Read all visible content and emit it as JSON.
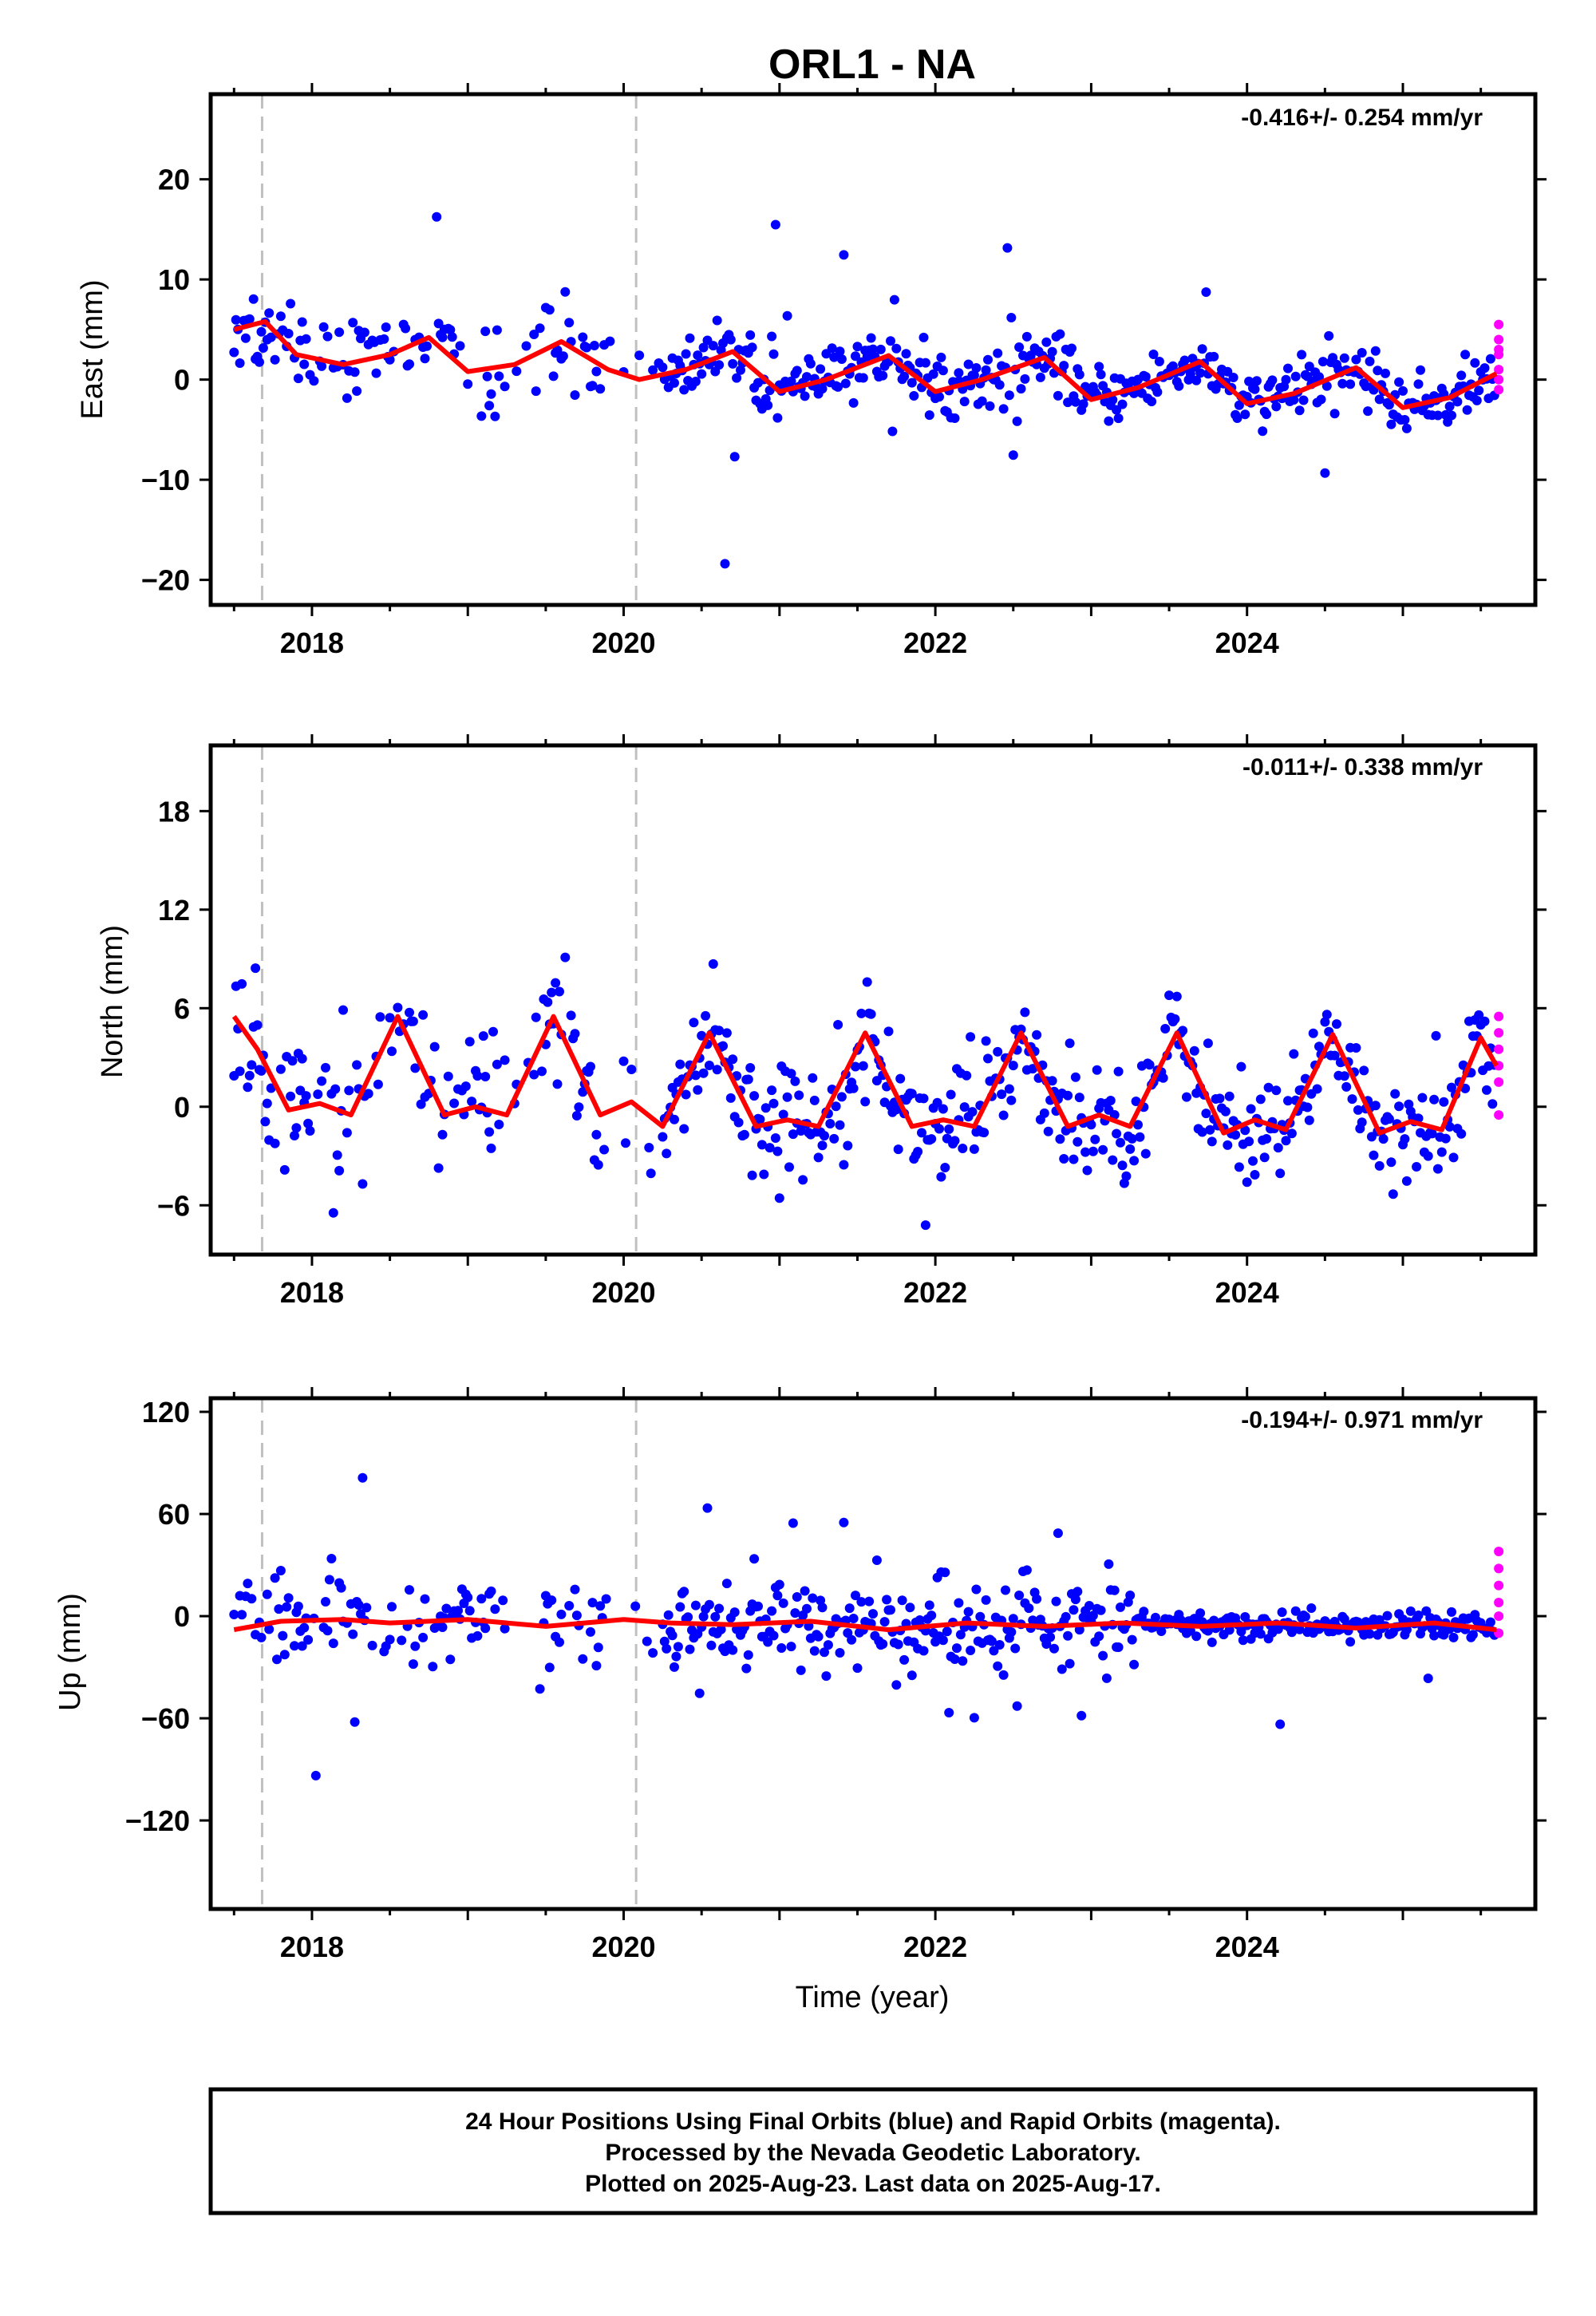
{
  "chart_data": {
    "type": "scatter",
    "title": "ORL1 - NA",
    "xlabel": "Time (year)",
    "xlim": [
      2017.35,
      2025.85
    ],
    "x_ticks": [
      "2018",
      "2020",
      "2022",
      "2024"
    ],
    "event_lines_x": [
      2017.68,
      2020.08
    ],
    "last_final_x": 2025.6,
    "panels": [
      {
        "ylabel": "East (mm)",
        "rate": "-0.416+/- 0.254 mm/yr",
        "ylim": [
          -22.5,
          28.5
        ],
        "y_ticks": [
          "20",
          "10",
          "0",
          "−10",
          "−20"
        ],
        "y_tick_values": [
          20,
          10,
          0,
          -10,
          -20
        ],
        "model": [
          [
            2017.5,
            5
          ],
          [
            2017.7,
            5.8
          ],
          [
            2017.9,
            2.5
          ],
          [
            2018.2,
            1.5
          ],
          [
            2018.5,
            2.5
          ],
          [
            2018.75,
            4.2
          ],
          [
            2019.0,
            0.8
          ],
          [
            2019.3,
            1.5
          ],
          [
            2019.6,
            3.8
          ],
          [
            2019.9,
            1
          ],
          [
            2020.1,
            0
          ],
          [
            2020.4,
            1
          ],
          [
            2020.7,
            2.8
          ],
          [
            2021.0,
            -1.2
          ],
          [
            2021.3,
            0
          ],
          [
            2021.7,
            2.4
          ],
          [
            2022.0,
            -1.2
          ],
          [
            2022.3,
            0
          ],
          [
            2022.7,
            2.2
          ],
          [
            2023.0,
            -2
          ],
          [
            2023.3,
            -0.8
          ],
          [
            2023.7,
            1.8
          ],
          [
            2024.0,
            -2.4
          ],
          [
            2024.3,
            -1.4
          ],
          [
            2024.7,
            1.2
          ],
          [
            2025.0,
            -2.8
          ],
          [
            2025.3,
            -1.8
          ],
          [
            2025.6,
            0.6
          ]
        ],
        "rapid": [
          5.5,
          4,
          2.5,
          1,
          0,
          -1,
          3
        ]
      },
      {
        "ylabel": "North (mm)",
        "rate": "-0.011+/- 0.338 mm/yr",
        "ylim": [
          -9,
          22
        ],
        "y_ticks": [
          "18",
          "12",
          "6",
          "0",
          "−6"
        ],
        "y_tick_values": [
          18,
          12,
          6,
          0,
          -6
        ],
        "model": [
          [
            2017.5,
            5.5
          ],
          [
            2017.65,
            3.5
          ],
          [
            2017.85,
            -0.2
          ],
          [
            2018.05,
            0.2
          ],
          [
            2018.25,
            -0.5
          ],
          [
            2018.55,
            5.5
          ],
          [
            2018.85,
            -0.5
          ],
          [
            2019.05,
            0
          ],
          [
            2019.25,
            -0.5
          ],
          [
            2019.55,
            5.5
          ],
          [
            2019.85,
            -0.5
          ],
          [
            2020.05,
            0.3
          ],
          [
            2020.25,
            -1.2
          ],
          [
            2020.55,
            4.5
          ],
          [
            2020.85,
            -1.2
          ],
          [
            2021.05,
            -0.8
          ],
          [
            2021.25,
            -1.2
          ],
          [
            2021.55,
            4.5
          ],
          [
            2021.85,
            -1.2
          ],
          [
            2022.05,
            -0.8
          ],
          [
            2022.25,
            -1.2
          ],
          [
            2022.55,
            4.5
          ],
          [
            2022.85,
            -1.2
          ],
          [
            2023.05,
            -0.5
          ],
          [
            2023.25,
            -1.2
          ],
          [
            2023.55,
            4.5
          ],
          [
            2023.85,
            -1.6
          ],
          [
            2024.05,
            -0.8
          ],
          [
            2024.25,
            -1.4
          ],
          [
            2024.55,
            4.4
          ],
          [
            2024.85,
            -1.6
          ],
          [
            2025.05,
            -0.9
          ],
          [
            2025.25,
            -1.4
          ],
          [
            2025.5,
            4.2
          ],
          [
            2025.6,
            2.5
          ]
        ],
        "rapid": [
          5.5,
          4.5,
          3.5,
          2.5,
          1.5,
          -0.5
        ]
      },
      {
        "ylabel": "Up (mm)",
        "rate": "-0.194+/- 0.971 mm/yr",
        "ylim": [
          -172,
          128
        ],
        "y_ticks": [
          "120",
          "60",
          "0",
          "−60",
          "−120"
        ],
        "y_tick_values": [
          120,
          60,
          0,
          -60,
          -120
        ],
        "model": [
          [
            2017.5,
            -8
          ],
          [
            2017.8,
            -3
          ],
          [
            2018.2,
            -2
          ],
          [
            2018.5,
            -4
          ],
          [
            2019.0,
            -2
          ],
          [
            2019.5,
            -6
          ],
          [
            2020.0,
            -2
          ],
          [
            2020.3,
            -4
          ],
          [
            2020.7,
            -5
          ],
          [
            2021.2,
            -3
          ],
          [
            2021.7,
            -8
          ],
          [
            2022.2,
            -4
          ],
          [
            2022.7,
            -6
          ],
          [
            2023.2,
            -4
          ],
          [
            2023.7,
            -6
          ],
          [
            2024.2,
            -4
          ],
          [
            2024.7,
            -7
          ],
          [
            2025.2,
            -4
          ],
          [
            2025.6,
            -8
          ]
        ],
        "rapid": [
          38,
          28,
          18,
          8,
          0,
          -10
        ]
      }
    ],
    "colors": {
      "final_orbits": "#0000ff",
      "rapid_orbits": "#ff00ff",
      "model": "#ff0000",
      "event_line": "#c0c0c0",
      "axes": "#000000"
    }
  },
  "footer": {
    "line1": "24 Hour Positions Using Final Orbits (blue) and Rapid Orbits (magenta).",
    "line2": "Processed by the Nevada Geodetic Laboratory.",
    "line3": "Plotted on 2025-Aug-23. Last data on 2025-Aug-17."
  }
}
